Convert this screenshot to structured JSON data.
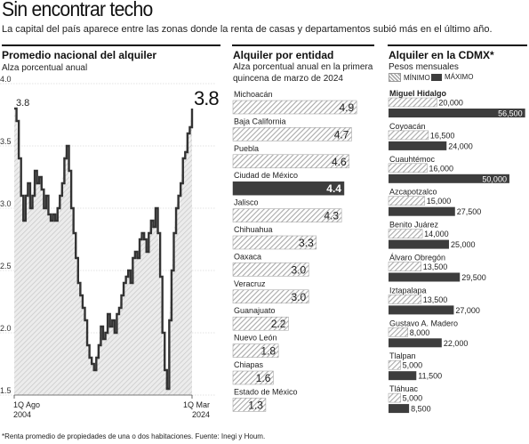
{
  "header": {
    "title": "Sin encontrar techo",
    "subtitle": "La capital del país aparece entre las zonas donde la renta de casas y departamentos subió más en el último año."
  },
  "footnote": "*Renta promedio de propiedades de una o dos habitaciones. Fuente: Inegi y Houm.",
  "colors": {
    "hatch": "#bdbdbd",
    "dark": "#3d3d3d",
    "line": "#333333",
    "area": "#dcdcdc"
  },
  "chart_data": [
    {
      "type": "line",
      "title": "Promedio nacional del alquiler",
      "subtitle": "Alza porcentual anual",
      "x_labels": [
        "1Q Ago\n2004",
        "1Q Mar\n2024"
      ],
      "ylim": [
        1.5,
        4.0
      ],
      "yticks": [
        "4.0",
        "3.5",
        "3.0",
        "2.5",
        "2.0",
        "1.5"
      ],
      "start_label": "3.8",
      "end_label": "3.8",
      "values": [
        3.8,
        3.7,
        3.4,
        3.1,
        2.9,
        3.1,
        3.2,
        3.0,
        3.1,
        3.3,
        3.2,
        3.25,
        3.15,
        3.0,
        3.1,
        2.95,
        2.9,
        2.95,
        2.9,
        3.0,
        3.1,
        3.2,
        3.4,
        3.5,
        3.3,
        3.0,
        2.8,
        2.6,
        2.4,
        2.3,
        2.2,
        2.1,
        1.9,
        1.8,
        1.75,
        1.7,
        1.8,
        1.9,
        2.05,
        1.95,
        2.0,
        2.15,
        2.05,
        2.1,
        2.0,
        2.15,
        2.2,
        2.3,
        2.4,
        2.45,
        2.5,
        2.4,
        2.6,
        2.65,
        2.6,
        2.75,
        2.8,
        2.75,
        2.65,
        2.8,
        2.9,
        2.85,
        3.0,
        2.8,
        2.45,
        2.0,
        1.7,
        1.55,
        2.1,
        2.5,
        2.8,
        3.0,
        3.1,
        3.2,
        3.4,
        3.45,
        3.6,
        3.65,
        3.8
      ]
    },
    {
      "type": "bar",
      "title": "Alquiler por entidad",
      "subtitle": "Alza porcentual anual en la primera quincena de marzo de 2024",
      "categories": [
        "Michoacán",
        "Baja California",
        "Puebla",
        "Ciudad de México",
        "Jalisco",
        "Chihuahua",
        "Oaxaca",
        "Veracruz",
        "Guanajuato",
        "Nuevo León",
        "Chiapas",
        "Estado de México"
      ],
      "values": [
        4.9,
        4.7,
        4.6,
        4.4,
        4.3,
        3.3,
        3.0,
        3.0,
        2.2,
        1.8,
        1.6,
        1.3
      ],
      "labels": [
        "4.9",
        "4.7",
        "4.6",
        "4.4",
        "4.3",
        "3.3",
        "3.0",
        "3.0",
        "2.2",
        "1.8",
        "1.6",
        "1.3"
      ],
      "highlight": "Ciudad de México"
    },
    {
      "type": "bar",
      "title": "Alquiler en la CDMX*",
      "subtitle": "Pesos mensuales",
      "legend": [
        {
          "name": "MÍNIMO"
        },
        {
          "name": "MÁXIMO"
        }
      ],
      "categories": [
        "Miguel Hidalgo",
        "Coyoacán",
        "Cuauhtémoc",
        "Azcapotzalco",
        "Benito Juárez",
        "Álvaro Obregón",
        "Iztapalapa",
        "Gustavo A. Madero",
        "Tlalpan",
        "Tláhuac"
      ],
      "series": [
        {
          "name": "MÍNIMO",
          "values": [
            20000,
            16500,
            16000,
            15000,
            14000,
            13500,
            13500,
            8000,
            5000,
            5000
          ],
          "labels": [
            "20,000",
            "16,500",
            "16,000",
            "15,000",
            "14,000",
            "13,500",
            "13,500",
            "8,000",
            "5,000",
            "5,000"
          ]
        },
        {
          "name": "MÁXIMO",
          "values": [
            56500,
            24000,
            50000,
            27500,
            25000,
            29500,
            27000,
            22000,
            11500,
            8500
          ],
          "labels": [
            "56,500",
            "24,000",
            "50,000",
            "27,500",
            "25,000",
            "29,500",
            "27,000",
            "22,000",
            "11,500",
            "8,500"
          ]
        }
      ],
      "highlight": "Miguel Hidalgo"
    }
  ]
}
